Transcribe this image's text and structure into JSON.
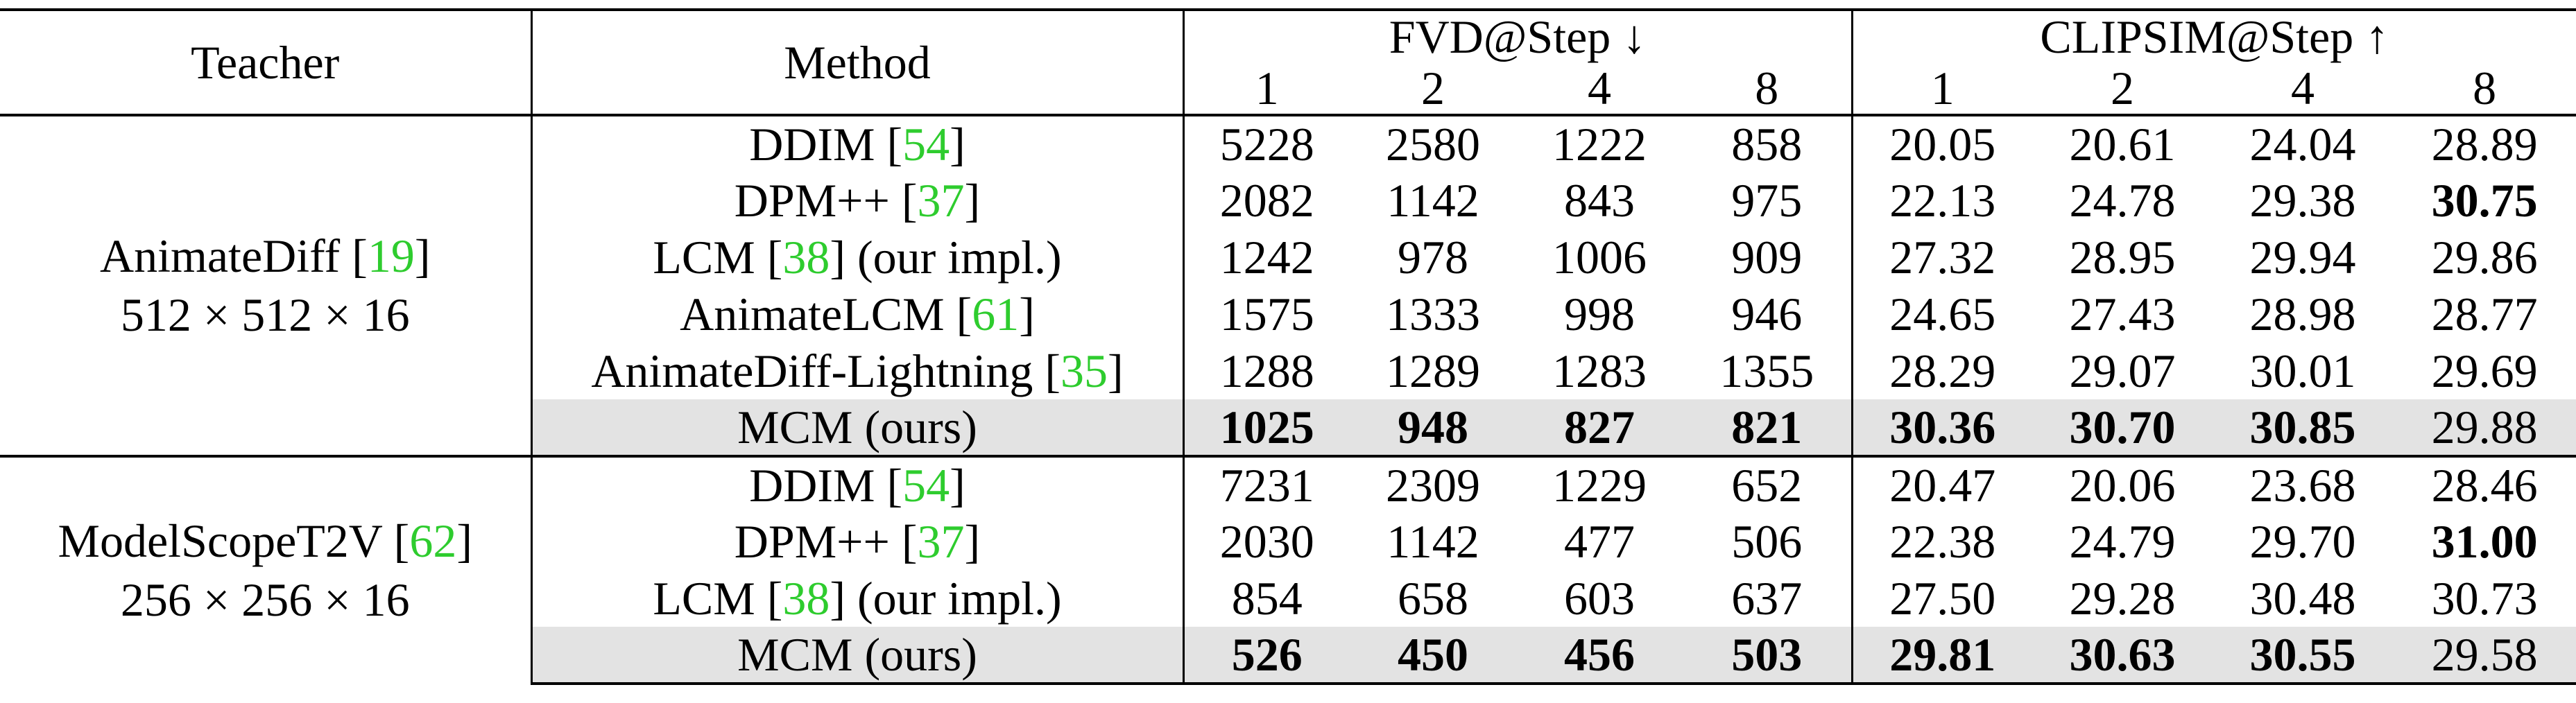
{
  "headers": {
    "teacher": "Teacher",
    "method": "Method",
    "fvd": "FVD@Step ↓",
    "clipsim": "CLIPSIM@Step ↑",
    "steps": [
      "1",
      "2",
      "4",
      "8",
      "1",
      "2",
      "4",
      "8"
    ]
  },
  "groups": [
    {
      "teacher_name": "AnimateDiff [",
      "teacher_cite": "19",
      "teacher_close": "]",
      "teacher_res": "512 × 512 × 16",
      "rows": [
        {
          "m_pre": "DDIM [",
          "m_cite": "54",
          "m_post": "]",
          "vals": [
            "5228",
            "2580",
            "1222",
            "858",
            "20.05",
            "20.61",
            "24.04",
            "28.89"
          ]
        },
        {
          "m_pre": "DPM++ [",
          "m_cite": "37",
          "m_post": "]",
          "vals": [
            "2082",
            "1142",
            "843",
            "975",
            "22.13",
            "24.78",
            "29.38",
            "30.75"
          ]
        },
        {
          "m_pre": "LCM [",
          "m_cite": "38",
          "m_post": "] (our impl.)",
          "vals": [
            "1242",
            "978",
            "1006",
            "909",
            "27.32",
            "28.95",
            "29.94",
            "29.86"
          ]
        },
        {
          "m_pre": "AnimateLCM [",
          "m_cite": "61",
          "m_post": "]",
          "vals": [
            "1575",
            "1333",
            "998",
            "946",
            "24.65",
            "27.43",
            "28.98",
            "28.77"
          ]
        },
        {
          "m_pre": "AnimateDiff-Lightning [",
          "m_cite": "35",
          "m_post": "]",
          "vals": [
            "1288",
            "1289",
            "1283",
            "1355",
            "28.29",
            "29.07",
            "30.01",
            "29.69"
          ]
        },
        {
          "m_pre": "MCM (ours)",
          "m_cite": "",
          "m_post": "",
          "vals": [
            "1025",
            "948",
            "827",
            "821",
            "30.36",
            "30.70",
            "30.85",
            "29.88"
          ]
        }
      ]
    },
    {
      "teacher_name": "ModelScopeT2V [",
      "teacher_cite": "62",
      "teacher_close": "]",
      "teacher_res": "256 × 256 × 16",
      "rows": [
        {
          "m_pre": "DDIM [",
          "m_cite": "54",
          "m_post": "]",
          "vals": [
            "7231",
            "2309",
            "1229",
            "652",
            "20.47",
            "20.06",
            "23.68",
            "28.46"
          ]
        },
        {
          "m_pre": "DPM++ [",
          "m_cite": "37",
          "m_post": "]",
          "vals": [
            "2030",
            "1142",
            "477",
            "506",
            "22.38",
            "24.79",
            "29.70",
            "31.00"
          ]
        },
        {
          "m_pre": "LCM [",
          "m_cite": "38",
          "m_post": "] (our impl.)",
          "vals": [
            "854",
            "658",
            "603",
            "637",
            "27.50",
            "29.28",
            "30.48",
            "30.73"
          ]
        },
        {
          "m_pre": "MCM (ours)",
          "m_cite": "",
          "m_post": "",
          "vals": [
            "526",
            "450",
            "456",
            "503",
            "29.81",
            "30.63",
            "30.55",
            "29.58"
          ]
        }
      ]
    }
  ]
}
